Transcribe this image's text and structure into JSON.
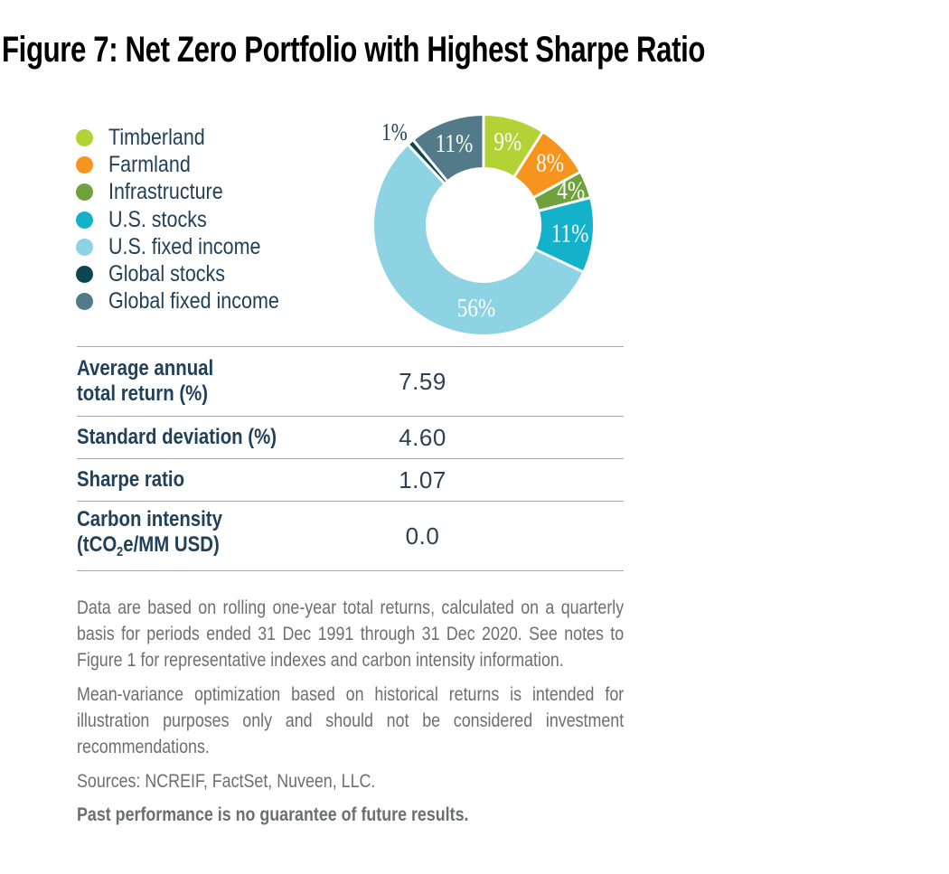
{
  "figure": {
    "title": "Figure 7: Net Zero Portfolio with Highest Sharpe Ratio"
  },
  "chart_data": {
    "type": "pie",
    "subtype": "donut",
    "title": "Net Zero Portfolio allocation",
    "unit": "%",
    "start_angle_deg": 0,
    "direction": "clockwise",
    "inner_radius_ratio": 0.53,
    "legend_position": "left",
    "inside_label_color": "#ffffff",
    "outside_label_color": "#21405a",
    "slices": [
      {
        "label": "Timberland",
        "value": 9,
        "data_label": "9%",
        "color": "#b2d235"
      },
      {
        "label": "Farmland",
        "value": 8,
        "data_label": "8%",
        "color": "#f7941e",
        "label_radius": 101
      },
      {
        "label": "Infrastructure",
        "value": 4,
        "data_label": "4%",
        "color": "#6fa23c",
        "label_radius": 104
      },
      {
        "label": "U.S. stocks",
        "value": 11,
        "data_label": "11%",
        "color": "#14b1ca"
      },
      {
        "label": "U.S. fixed income",
        "value": 56,
        "data_label": "56%",
        "color": "#8ed3e3",
        "label_angle": 185,
        "label_radius": 92
      },
      {
        "label": "Global stocks",
        "value": 1,
        "data_label": "1%",
        "color": "#0c4650",
        "label_outside": true,
        "label_angle": 316,
        "label_radius": 142
      },
      {
        "label": "Global fixed income",
        "value": 11,
        "data_label": "11%",
        "color": "#527a89"
      }
    ]
  },
  "stats_table": {
    "rows": [
      {
        "label_line1": "Average annual",
        "label_line2": "total return (%)",
        "value": "7.59"
      },
      {
        "label_line1": "Standard deviation (%)",
        "value": "4.60"
      },
      {
        "label_line1": "Sharpe ratio",
        "value": "1.07"
      },
      {
        "label_line1": "Carbon intensity",
        "label_line2_pre": "(tCO",
        "label_line2_sub": "2",
        "label_line2_post": "e/MM USD)",
        "value": "0.0"
      }
    ]
  },
  "notes": {
    "p1": "Data are based on rolling one-year total returns, calculated on a quarterly basis for periods ended 31 Dec 1991 through 31 Dec 2020. See notes to Figure 1 for representative indexes and carbon intensity information.",
    "p2": "Mean-variance optimization based on historical returns is intended for illustration purposes only and should not be considered investment recommendations.",
    "sources": "Sources: NCREIF, FactSet, Nuveen, LLC.",
    "disclaimer": "Past performance is no guarantee of future results."
  }
}
